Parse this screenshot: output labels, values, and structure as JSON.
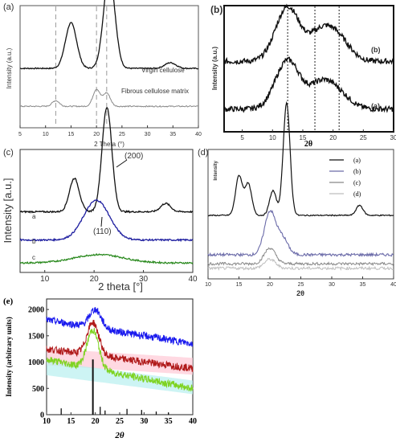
{
  "chart_data": [
    {
      "panel": "(a)",
      "type": "line",
      "xlabel": "2 Theta (°)",
      "ylabel": "Intensity (a.u.)",
      "xlim": [
        5,
        40
      ],
      "x_ticks": [
        "5",
        "10",
        "15",
        "20",
        "25",
        "30",
        "35",
        "40"
      ],
      "reference_lines_x": [
        12,
        20,
        22
      ],
      "series": [
        {
          "name": "Virgin cellulose",
          "color": "#111111",
          "peaks": [
            [
              15,
              0.48
            ],
            [
              22.5,
              1.0
            ],
            [
              34.5,
              0.06
            ]
          ],
          "baseline": 0.55
        },
        {
          "name": "Fibrous cellulose matrix",
          "color": "#888888",
          "peaks": [
            [
              12,
              0.06
            ],
            [
              20,
              0.18
            ],
            [
              22,
              0.14
            ]
          ],
          "baseline": 0.15
        }
      ]
    },
    {
      "panel": "(b)",
      "type": "line",
      "xlabel": "2θ",
      "ylabel": "Intensity (a.u.)",
      "xlim": [
        2,
        30
      ],
      "x_ticks": [
        "5",
        "10",
        "15",
        "20",
        "25",
        "30"
      ],
      "reference_lines_x": [
        12.5,
        17,
        21
      ],
      "series": [
        {
          "name": "(b)",
          "color": "#111111",
          "peaks": [
            [
              12.5,
              0.5
            ],
            [
              18,
              0.25
            ],
            [
              21,
              0.18
            ]
          ],
          "baseline": 0.62
        },
        {
          "name": "(a)",
          "color": "#111111",
          "peaks": [
            [
              12.5,
              0.45
            ],
            [
              18,
              0.22
            ],
            [
              21,
              0.12
            ]
          ],
          "baseline": 0.18
        }
      ]
    },
    {
      "panel": "(c)",
      "type": "line",
      "xlabel": "2 theta  [°]",
      "ylabel": "Intensity  [a.u.]",
      "xlim": [
        5,
        40
      ],
      "x_ticks": [
        "10",
        "20",
        "30",
        "40"
      ],
      "annotations": [
        "(200)",
        "(110)"
      ],
      "series": [
        {
          "name": "a",
          "color": "#111111",
          "peaks": [
            [
              16,
              0.32
            ],
            [
              22.6,
              1.0
            ],
            [
              34.5,
              0.08
            ]
          ],
          "baseline": 0.55
        },
        {
          "name": "b",
          "color": "#1d1d9f",
          "peaks": [
            [
              20.5,
              0.38
            ]
          ],
          "baseline": 0.28
        },
        {
          "name": "c",
          "color": "#2b8a1f",
          "peaks": [
            [
              21,
              0.08
            ]
          ],
          "baseline": 0.06
        }
      ]
    },
    {
      "panel": "(d)",
      "type": "line",
      "xlabel": "2θ",
      "ylabel": "Intensity",
      "xlim": [
        10,
        40
      ],
      "x_ticks": [
        "10",
        "15",
        "20",
        "25",
        "30",
        "35",
        "40"
      ],
      "series": [
        {
          "name": "(a)",
          "color": "#111111",
          "peaks": [
            [
              15,
              0.35
            ],
            [
              16.5,
              0.28
            ],
            [
              20.5,
              0.22
            ],
            [
              22.7,
              1.0
            ],
            [
              34.5,
              0.09
            ]
          ],
          "baseline": 0.55
        },
        {
          "name": "(b)",
          "color": "#6a6aa8",
          "peaks": [
            [
              20,
              0.38
            ],
            [
              22,
              0.15
            ]
          ],
          "baseline": 0.2
        },
        {
          "name": "(c)",
          "color": "#888888",
          "peaks": [
            [
              20,
              0.14
            ]
          ],
          "baseline": 0.12
        },
        {
          "name": "(d)",
          "color": "#bdbdbd",
          "peaks": [
            [
              20,
              0.08
            ]
          ],
          "baseline": 0.08
        }
      ]
    },
    {
      "panel": "(e)",
      "type": "line",
      "xlabel": "2θ",
      "ylabel": "Intensity (arbitrary units)",
      "xlim": [
        10,
        40
      ],
      "ylim": [
        0,
        2200
      ],
      "x_ticks": [
        "10",
        "15",
        "20",
        "25",
        "30",
        "35",
        "40"
      ],
      "y_ticks": [
        "0",
        "500",
        "1000",
        "1500",
        "2000"
      ],
      "series": [
        {
          "name": "blue",
          "color": "#1a1aee",
          "start": 1800,
          "end": 1350,
          "peak": [
            20,
            2000
          ]
        },
        {
          "name": "red",
          "color": "#b01a1a",
          "start": 1250,
          "end": 880,
          "peak": [
            19.5,
            1750
          ]
        },
        {
          "name": "green",
          "color": "#7ed321",
          "start": 1050,
          "end": 500,
          "peak": [
            19.5,
            1600
          ]
        }
      ],
      "sticks": [
        [
          13,
          120
        ],
        [
          19.5,
          1050
        ],
        [
          21,
          150
        ],
        [
          22,
          80
        ],
        [
          26.5,
          110
        ],
        [
          29.5,
          90
        ],
        [
          32.5,
          60
        ],
        [
          35,
          40
        ]
      ]
    }
  ]
}
